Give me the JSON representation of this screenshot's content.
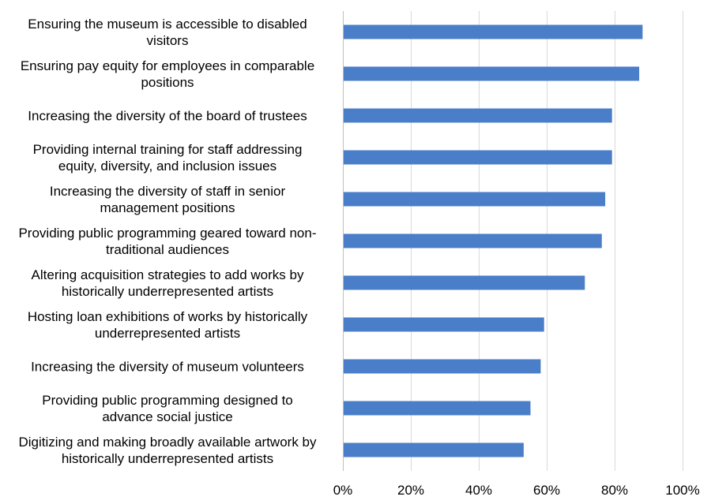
{
  "chart_data": {
    "type": "bar",
    "orientation": "horizontal",
    "title": "",
    "xlabel": "",
    "ylabel": "",
    "categories": [
      [
        "Ensuring the museum is  accessible to disabled",
        "visitors"
      ],
      [
        "Ensuring pay equity for employees in comparable",
        "positions"
      ],
      [
        "Increasing the diversity of the board of trustees"
      ],
      [
        "Providing internal training for staff addressing",
        "equity, diversity, and inclusion issues"
      ],
      [
        "Increasing the diversity of staff in senior",
        "management positions"
      ],
      [
        "Providing public programming geared toward non-",
        "traditional audiences"
      ],
      [
        "Altering acquisition strategies to add works by",
        "historically underrepresented artists"
      ],
      [
        "Hosting loan exhibitions of works by historically",
        "underrepresented artists"
      ],
      [
        "Increasing the diversity of museum volunteers"
      ],
      [
        "Providing public programming designed to",
        "advance social justice"
      ],
      [
        "Digitizing and making broadly available artwork by",
        "historically underrepresented artists"
      ]
    ],
    "values": [
      88,
      87,
      79,
      79,
      77,
      76,
      71,
      59,
      58,
      55,
      53
    ],
    "xlim": [
      0,
      100
    ],
    "xticks": [
      "0%",
      "20%",
      "40%",
      "60%",
      "80%",
      "100%"
    ],
    "xtick_values": [
      0,
      20,
      40,
      60,
      80,
      100
    ],
    "grid": true,
    "bar_color": "#4a7ec8",
    "grid_color": "#d9d9d9"
  }
}
